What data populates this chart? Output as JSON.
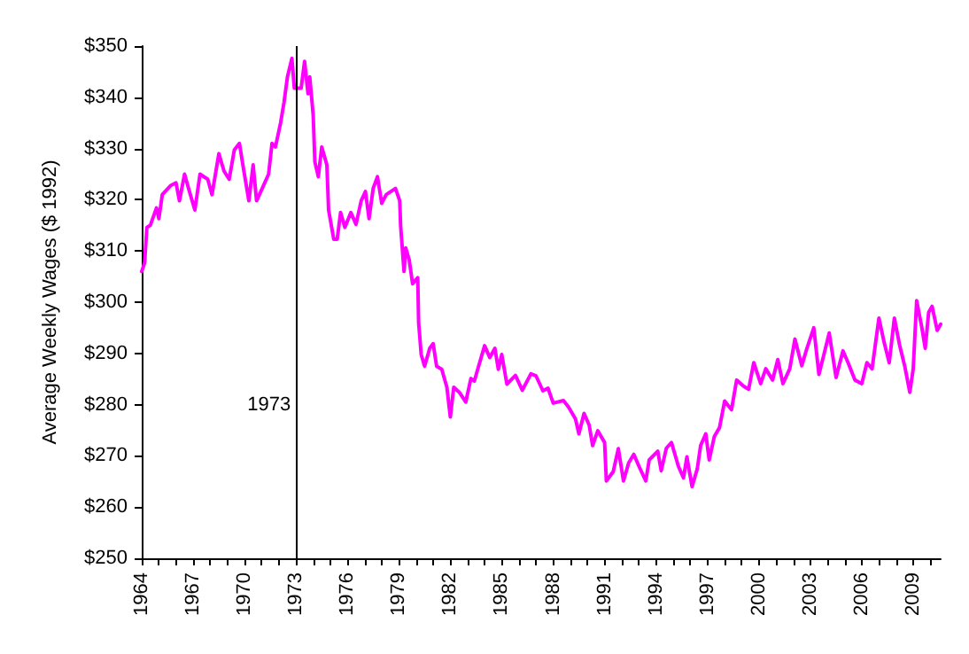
{
  "chart_data": {
    "type": "line",
    "ylabel": "Average Weekly Wages ($ 1992)",
    "color": "#ff00ff",
    "marker": "none",
    "line_style": "solid",
    "xlim": [
      1964,
      2010.6
    ],
    "xticks": [
      {
        "value": 1964,
        "label": "1964"
      },
      {
        "value": 1965,
        "label": null
      },
      {
        "value": 1966,
        "label": null
      },
      {
        "value": 1967,
        "label": "1967"
      },
      {
        "value": 1968,
        "label": null
      },
      {
        "value": 1969,
        "label": null
      },
      {
        "value": 1970,
        "label": "1970"
      },
      {
        "value": 1971,
        "label": null
      },
      {
        "value": 1972,
        "label": null
      },
      {
        "value": 1973,
        "label": "1973"
      },
      {
        "value": 1974,
        "label": null
      },
      {
        "value": 1975,
        "label": null
      },
      {
        "value": 1976,
        "label": "1976"
      },
      {
        "value": 1977,
        "label": null
      },
      {
        "value": 1978,
        "label": null
      },
      {
        "value": 1979,
        "label": "1979"
      },
      {
        "value": 1980,
        "label": null
      },
      {
        "value": 1981,
        "label": null
      },
      {
        "value": 1982,
        "label": "1982"
      },
      {
        "value": 1983,
        "label": null
      },
      {
        "value": 1984,
        "label": null
      },
      {
        "value": 1985,
        "label": "1985"
      },
      {
        "value": 1986,
        "label": null
      },
      {
        "value": 1987,
        "label": null
      },
      {
        "value": 1988,
        "label": "1988"
      },
      {
        "value": 1989,
        "label": null
      },
      {
        "value": 1990,
        "label": null
      },
      {
        "value": 1991,
        "label": "1991"
      },
      {
        "value": 1992,
        "label": null
      },
      {
        "value": 1993,
        "label": null
      },
      {
        "value": 1994,
        "label": "1994"
      },
      {
        "value": 1995,
        "label": null
      },
      {
        "value": 1996,
        "label": null
      },
      {
        "value": 1997,
        "label": "1997"
      },
      {
        "value": 1998,
        "label": null
      },
      {
        "value": 1999,
        "label": null
      },
      {
        "value": 2000,
        "label": "2000"
      },
      {
        "value": 2001,
        "label": null
      },
      {
        "value": 2002,
        "label": null
      },
      {
        "value": 2003,
        "label": "2003"
      },
      {
        "value": 2004,
        "label": null
      },
      {
        "value": 2005,
        "label": null
      },
      {
        "value": 2006,
        "label": "2006"
      },
      {
        "value": 2007,
        "label": null
      },
      {
        "value": 2008,
        "label": null
      },
      {
        "value": 2009,
        "label": "2009"
      },
      {
        "value": 2010,
        "label": null
      }
    ],
    "ylim": [
      250,
      350
    ],
    "yticks": [
      {
        "value": 250,
        "label": "$250"
      },
      {
        "value": 260,
        "label": "$260"
      },
      {
        "value": 270,
        "label": "$270"
      },
      {
        "value": 280,
        "label": "$280"
      },
      {
        "value": 290,
        "label": "$290"
      },
      {
        "value": 300,
        "label": "$300"
      },
      {
        "value": 310,
        "label": "$310"
      },
      {
        "value": 320,
        "label": "$320"
      },
      {
        "value": 330,
        "label": "$330"
      },
      {
        "value": 340,
        "label": "$340"
      },
      {
        "value": 350,
        "label": "$350"
      }
    ],
    "ref_lines": [
      {
        "axis": "x",
        "value": 1973,
        "label": "1973",
        "color": "#000000"
      }
    ],
    "x": [
      1964.0,
      1964.17,
      1964.3,
      1964.5,
      1964.86,
      1965.0,
      1965.2,
      1965.7,
      1966.0,
      1966.2,
      1966.5,
      1966.75,
      1967.1,
      1967.4,
      1967.85,
      1968.1,
      1968.5,
      1968.8,
      1969.1,
      1969.4,
      1969.7,
      1969.9,
      1970.25,
      1970.5,
      1970.7,
      1971.0,
      1971.4,
      1971.6,
      1971.8,
      1972.1,
      1972.3,
      1972.5,
      1972.76,
      1972.9,
      1973.3,
      1973.5,
      1973.7,
      1973.8,
      1974.0,
      1974.1,
      1974.3,
      1974.5,
      1974.8,
      1974.9,
      1975.2,
      1975.4,
      1975.6,
      1975.85,
      1976.2,
      1976.5,
      1976.8,
      1977.05,
      1977.26,
      1977.5,
      1977.75,
      1978.0,
      1978.26,
      1978.8,
      1979.05,
      1979.1,
      1979.3,
      1979.4,
      1979.6,
      1979.8,
      1980.1,
      1980.15,
      1980.3,
      1980.5,
      1980.8,
      1981.0,
      1981.2,
      1981.5,
      1981.8,
      1982.0,
      1982.2,
      1982.55,
      1982.9,
      1983.2,
      1983.4,
      1983.65,
      1984.0,
      1984.3,
      1984.6,
      1984.8,
      1985.0,
      1985.3,
      1985.8,
      1986.2,
      1986.7,
      1987.0,
      1987.4,
      1987.7,
      1988.0,
      1988.6,
      1988.9,
      1989.3,
      1989.5,
      1989.8,
      1990.1,
      1990.3,
      1990.6,
      1991.0,
      1991.1,
      1991.5,
      1991.8,
      1992.1,
      1992.4,
      1992.7,
      1993.0,
      1993.4,
      1993.6,
      1994.1,
      1994.3,
      1994.6,
      1994.9,
      1995.3,
      1995.6,
      1995.8,
      1996.1,
      1996.4,
      1996.6,
      1996.9,
      1997.1,
      1997.4,
      1997.7,
      1998.0,
      1998.4,
      1998.7,
      1999.1,
      1999.4,
      1999.7,
      2000.1,
      2000.4,
      2000.8,
      2001.1,
      2001.4,
      2001.8,
      2002.1,
      2002.5,
      2002.8,
      2003.2,
      2003.5,
      2003.8,
      2004.1,
      2004.5,
      2004.9,
      2005.2,
      2005.6,
      2006.0,
      2006.3,
      2006.6,
      2007.0,
      2007.3,
      2007.6,
      2007.9,
      2008.2,
      2008.5,
      2008.8,
      2009.0,
      2009.2,
      2009.5,
      2009.7,
      2009.9,
      2010.1,
      2010.4,
      2010.6
    ],
    "values": [
      306,
      307.7,
      314.6,
      315,
      318.4,
      316.3,
      321,
      322.8,
      323.3,
      319.8,
      325,
      322,
      318,
      325,
      324,
      321,
      329,
      325.6,
      324,
      329.7,
      331,
      326.8,
      319.8,
      326.8,
      319.8,
      322,
      325,
      331,
      330.3,
      335,
      339,
      344,
      347.6,
      341.8,
      341.8,
      347,
      340.7,
      344,
      336.6,
      327.4,
      324.5,
      330.3,
      326.8,
      318,
      312.3,
      312.3,
      317.5,
      314.6,
      317.5,
      315.2,
      319.8,
      321.6,
      316.3,
      322.2,
      324.5,
      319.3,
      321,
      322.2,
      319.8,
      315,
      306,
      310.6,
      308.3,
      303.6,
      304.8,
      296.1,
      289.8,
      287.5,
      291,
      291.9,
      287.5,
      286.9,
      283.4,
      277.6,
      283.4,
      282.3,
      280.5,
      285.1,
      284.6,
      287.5,
      291.5,
      289.2,
      291,
      286.9,
      289.8,
      284,
      285.7,
      282.8,
      286,
      285.6,
      282.7,
      283.2,
      280.3,
      280.8,
      279.5,
      277.2,
      274.3,
      278.3,
      276,
      272,
      274.9,
      272.6,
      265.1,
      266.9,
      271.4,
      265.1,
      268.6,
      270.3,
      268,
      265.1,
      269.2,
      270.9,
      267.1,
      271.5,
      272.6,
      268,
      265.7,
      269.8,
      264,
      267.4,
      272,
      274.3,
      269.2,
      273.8,
      275.5,
      280.7,
      279,
      284.8,
      283.6,
      283,
      288.2,
      284.1,
      287,
      284.8,
      288.8,
      284.1,
      287,
      292.8,
      287.6,
      291,
      295,
      285.9,
      289.9,
      294,
      285.3,
      290.5,
      288.2,
      284.8,
      284.1,
      288.2,
      287,
      296.9,
      292.2,
      288.2,
      296.9,
      291.7,
      287.6,
      282.4,
      287,
      300.3,
      295.1,
      291,
      298,
      299.2,
      294.5,
      295.7
    ]
  }
}
